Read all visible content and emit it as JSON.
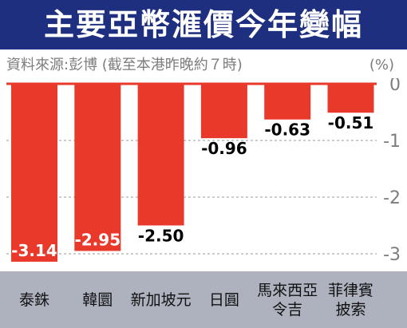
{
  "title": "主要亞幣滙價今年變幅",
  "source_note": "資料來源:彭博 (截至本港昨晚約７時)",
  "unit_label": "(%)",
  "colors": {
    "header": "#1e2f80",
    "bar": "#e8392a",
    "band": "#aeb2be",
    "grid": "#9a9a9a"
  },
  "chart_data": {
    "type": "bar",
    "title": "主要亞幣滙價今年變幅",
    "xlabel": "",
    "ylabel": "(%)",
    "categories": [
      "泰銖",
      "韓圜",
      "新加坡元",
      "日圓",
      "馬來西亞\n令吉",
      "菲律賓\n披索"
    ],
    "values": [
      -3.14,
      -2.95,
      -2.5,
      -0.96,
      -0.63,
      -0.51
    ],
    "value_labels": [
      "-3.14",
      "-2.95",
      "-2.50",
      "-0.96",
      "-0.63",
      "-0.51"
    ],
    "y_ticks": [
      "0",
      "-1",
      "-2",
      "-3"
    ],
    "y_tick_values": [
      0,
      -1,
      -2,
      -3
    ],
    "ylim": [
      -3.3,
      0
    ],
    "grid": true
  }
}
